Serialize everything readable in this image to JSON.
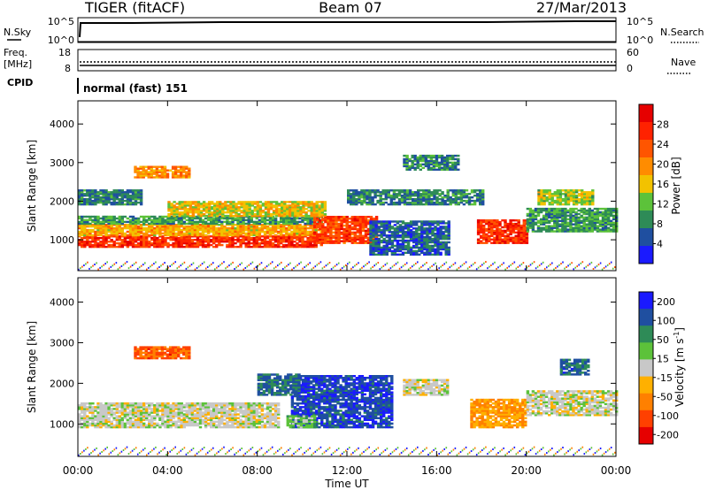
{
  "header": {
    "title_left": "TIGER (fitACF)",
    "title_center": "Beam 07",
    "title_right": "27/Mar/2013"
  },
  "panels": {
    "nsky": {
      "left_label": "N.Sky",
      "left_ticks": [
        "10^5",
        "10^0"
      ],
      "right_ticks": [
        "10^5",
        "10^0"
      ],
      "right_label": "N.Search"
    },
    "freq": {
      "left_label_1": "Freq.",
      "left_label_2": "[MHz]",
      "left_ticks": [
        "18",
        "8"
      ],
      "right_ticks": [
        "60",
        "0"
      ],
      "right_label": "Nave"
    },
    "cpid": {
      "label": "CPID",
      "text": "normal (fast) 151"
    }
  },
  "colors": {
    "power_scale": [
      "#1a1aff",
      "#1f4fa0",
      "#2e8b57",
      "#5cc23a",
      "#f2c200",
      "#ff8c00",
      "#ff5500",
      "#ff2200",
      "#e60000"
    ],
    "velocity_scale": [
      "#1a1aff",
      "#1f4fa0",
      "#2e8b57",
      "#5cc23a",
      "#c8c8c8",
      "#ffb000",
      "#ff8000",
      "#ff4000",
      "#e60000"
    ]
  },
  "chart_data": [
    {
      "type": "heatmap",
      "name": "power",
      "ylabel": "Slant Range [km]",
      "yticks": [
        "1000",
        "2000",
        "3000",
        "4000"
      ],
      "ylim": [
        200,
        4600
      ],
      "colorbar_label": "Power [dB]",
      "colorbar_ticks": [
        "4",
        "8",
        "12",
        "16",
        "20",
        "24",
        "28"
      ],
      "bands": [
        {
          "t0": 0.0,
          "t1": 10.8,
          "r0": 800,
          "r1": 1100,
          "value": 26
        },
        {
          "t0": 0.0,
          "t1": 10.8,
          "r0": 1100,
          "r1": 1400,
          "value": 18
        },
        {
          "t0": 0.0,
          "t1": 10.8,
          "r0": 1400,
          "r1": 1600,
          "value": 10
        },
        {
          "t0": 10.5,
          "t1": 13.3,
          "r0": 900,
          "r1": 1600,
          "value": 25
        },
        {
          "t0": 4.0,
          "t1": 11.0,
          "r0": 1600,
          "r1": 2000,
          "value": 16
        },
        {
          "t0": 0.0,
          "t1": 2.8,
          "r0": 1900,
          "r1": 2300,
          "value": 8
        },
        {
          "t0": 12.0,
          "t1": 18.0,
          "r0": 1900,
          "r1": 2300,
          "value": 8
        },
        {
          "t0": 13.0,
          "t1": 16.5,
          "r0": 600,
          "r1": 1500,
          "value": 6
        },
        {
          "t0": 17.8,
          "t1": 20.0,
          "r0": 900,
          "r1": 1500,
          "value": 26
        },
        {
          "t0": 20.0,
          "t1": 24.0,
          "r0": 1200,
          "r1": 1800,
          "value": 10
        },
        {
          "t0": 20.5,
          "t1": 23.0,
          "r0": 1900,
          "r1": 2300,
          "value": 14
        },
        {
          "t0": 2.5,
          "t1": 5.0,
          "r0": 2600,
          "r1": 2900,
          "value": 20
        },
        {
          "t0": 14.5,
          "t1": 17.0,
          "r0": 2800,
          "r1": 3200,
          "value": 8
        }
      ]
    },
    {
      "type": "heatmap",
      "name": "velocity",
      "ylabel": "Slant Range [km]",
      "yticks": [
        "1000",
        "2000",
        "3000",
        "4000"
      ],
      "ylim": [
        200,
        4600
      ],
      "colorbar_label_main": "Velocity",
      "colorbar_label_unit": "[m s",
      "colorbar_label_exp": "-1",
      "colorbar_label_close": "]",
      "colorbar_ticks": [
        "200",
        "100",
        "50",
        "15",
        "-15",
        "-50",
        "-100",
        "-200"
      ],
      "bands": [
        {
          "t0": 0.0,
          "t1": 9.0,
          "r0": 900,
          "r1": 1500,
          "value": 0
        },
        {
          "t0": 9.5,
          "t1": 14.0,
          "r0": 900,
          "r1": 2200,
          "value": 180
        },
        {
          "t0": 8.0,
          "t1": 9.8,
          "r0": 1700,
          "r1": 2200,
          "value": 150
        },
        {
          "t0": 9.3,
          "t1": 10.6,
          "r0": 900,
          "r1": 1200,
          "value": 60
        },
        {
          "t0": 17.5,
          "t1": 20.0,
          "r0": 900,
          "r1": 1600,
          "value": -90
        },
        {
          "t0": 20.0,
          "t1": 24.0,
          "r0": 1200,
          "r1": 1800,
          "value": 0
        },
        {
          "t0": 14.5,
          "t1": 16.5,
          "r0": 1700,
          "r1": 2100,
          "value": 0
        },
        {
          "t0": 2.5,
          "t1": 5.0,
          "r0": 2600,
          "r1": 2900,
          "value": -150
        },
        {
          "t0": 21.5,
          "t1": 22.8,
          "r0": 2200,
          "r1": 2600,
          "value": 150
        }
      ]
    }
  ],
  "xaxis": {
    "label": "Time UT",
    "ticks": [
      "00:00",
      "04:00",
      "08:00",
      "12:00",
      "16:00",
      "20:00",
      "00:00"
    ]
  }
}
